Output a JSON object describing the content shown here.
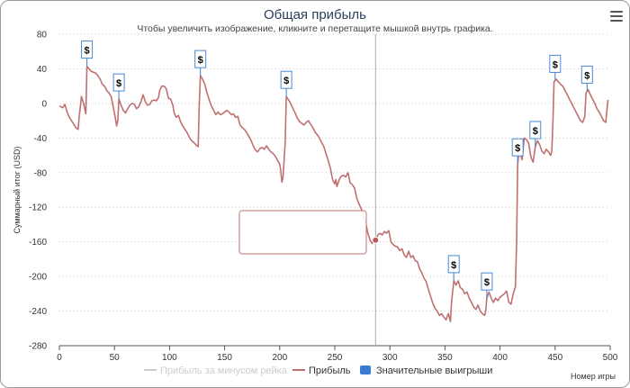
{
  "chart_data": {
    "type": "line",
    "title": "Общая прибыль",
    "subtitle": "Чтобы увеличить изображение, кликните и перетащите мышкой внутрь графика.",
    "ylabel": "Суммарный итог (USD)",
    "xlabel": "Номер игры",
    "xlim": [
      0,
      500
    ],
    "ylim": [
      -280,
      80
    ],
    "x_ticks": [
      0,
      50,
      100,
      150,
      200,
      250,
      300,
      350,
      400,
      450,
      500
    ],
    "y_ticks": [
      80,
      40,
      0,
      -40,
      -80,
      -120,
      -160,
      -200,
      -240,
      -280
    ],
    "series": [
      {
        "name": "Прибыль",
        "color": "#c07070",
        "points": [
          [
            0,
            -3
          ],
          [
            3,
            -5
          ],
          [
            5,
            -1
          ],
          [
            7,
            -10
          ],
          [
            9,
            -16
          ],
          [
            12,
            -22
          ],
          [
            15,
            -28
          ],
          [
            17,
            -30
          ],
          [
            18,
            -15
          ],
          [
            20,
            8
          ],
          [
            22,
            0
          ],
          [
            24,
            -12
          ],
          [
            25,
            43
          ],
          [
            27,
            40
          ],
          [
            29,
            37
          ],
          [
            31,
            36
          ],
          [
            33,
            35
          ],
          [
            35,
            32
          ],
          [
            37,
            28
          ],
          [
            39,
            22
          ],
          [
            41,
            20
          ],
          [
            43,
            15
          ],
          [
            45,
            12
          ],
          [
            47,
            8
          ],
          [
            49,
            -5
          ],
          [
            51,
            -18
          ],
          [
            52,
            -26
          ],
          [
            53,
            -20
          ],
          [
            54,
            5
          ],
          [
            56,
            -2
          ],
          [
            58,
            -8
          ],
          [
            60,
            -11
          ],
          [
            62,
            -6
          ],
          [
            64,
            -2
          ],
          [
            66,
            0
          ],
          [
            68,
            -1
          ],
          [
            70,
            -6
          ],
          [
            72,
            -4
          ],
          [
            74,
            2
          ],
          [
            76,
            10
          ],
          [
            78,
            2
          ],
          [
            80,
            -2
          ],
          [
            82,
            -1
          ],
          [
            84,
            3
          ],
          [
            86,
            4
          ],
          [
            88,
            3
          ],
          [
            90,
            7
          ],
          [
            91,
            15
          ],
          [
            93,
            20
          ],
          [
            95,
            20
          ],
          [
            97,
            17
          ],
          [
            99,
            6
          ],
          [
            101,
            5
          ],
          [
            103,
            -2
          ],
          [
            104,
            -10
          ],
          [
            106,
            -16
          ],
          [
            108,
            -14
          ],
          [
            110,
            -21
          ],
          [
            112,
            -26
          ],
          [
            114,
            -30
          ],
          [
            116,
            -34
          ],
          [
            118,
            -39
          ],
          [
            120,
            -43
          ],
          [
            122,
            -45
          ],
          [
            124,
            -48
          ],
          [
            126,
            -50
          ],
          [
            127,
            0
          ],
          [
            128,
            32
          ],
          [
            130,
            28
          ],
          [
            132,
            22
          ],
          [
            134,
            12
          ],
          [
            136,
            4
          ],
          [
            138,
            -3
          ],
          [
            140,
            -8
          ],
          [
            142,
            -13
          ],
          [
            144,
            -10
          ],
          [
            146,
            -13
          ],
          [
            148,
            -12
          ],
          [
            150,
            -10
          ],
          [
            152,
            -8
          ],
          [
            154,
            -10
          ],
          [
            156,
            -13
          ],
          [
            158,
            -12
          ],
          [
            160,
            -16
          ],
          [
            162,
            -15
          ],
          [
            164,
            -25
          ],
          [
            166,
            -28
          ],
          [
            168,
            -30
          ],
          [
            170,
            -34
          ],
          [
            172,
            -38
          ],
          [
            174,
            -43
          ],
          [
            176,
            -49
          ],
          [
            178,
            -54
          ],
          [
            180,
            -56
          ],
          [
            182,
            -52
          ],
          [
            184,
            -51
          ],
          [
            186,
            -53
          ],
          [
            188,
            -49
          ],
          [
            190,
            -53
          ],
          [
            192,
            -56
          ],
          [
            194,
            -58
          ],
          [
            196,
            -61
          ],
          [
            198,
            -66
          ],
          [
            200,
            -70
          ],
          [
            201,
            -78
          ],
          [
            202,
            -91
          ],
          [
            203,
            -85
          ],
          [
            204,
            -65
          ],
          [
            205,
            -45
          ],
          [
            206,
            8
          ],
          [
            208,
            4
          ],
          [
            210,
            0
          ],
          [
            212,
            -6
          ],
          [
            214,
            -11
          ],
          [
            216,
            -17
          ],
          [
            218,
            -21
          ],
          [
            220,
            -23
          ],
          [
            222,
            -25
          ],
          [
            224,
            -22
          ],
          [
            226,
            -20
          ],
          [
            228,
            -24
          ],
          [
            230,
            -28
          ],
          [
            232,
            -33
          ],
          [
            234,
            -36
          ],
          [
            236,
            -40
          ],
          [
            238,
            -45
          ],
          [
            240,
            -50
          ],
          [
            242,
            -58
          ],
          [
            244,
            -66
          ],
          [
            246,
            -75
          ],
          [
            248,
            -88
          ],
          [
            250,
            -93
          ],
          [
            251,
            -88
          ],
          [
            252,
            -96
          ],
          [
            254,
            -88
          ],
          [
            256,
            -84
          ],
          [
            258,
            -83
          ],
          [
            260,
            -85
          ],
          [
            262,
            -80
          ],
          [
            264,
            -92
          ],
          [
            266,
            -94
          ],
          [
            268,
            -98
          ],
          [
            270,
            -110
          ],
          [
            272,
            -116
          ],
          [
            274,
            -122
          ],
          [
            276,
            -131
          ],
          [
            278,
            -138
          ],
          [
            280,
            -150
          ],
          [
            282,
            -158
          ],
          [
            284,
            -162
          ],
          [
            286,
            -156
          ],
          [
            288,
            -158
          ],
          [
            289,
            -152
          ],
          [
            291,
            -150
          ],
          [
            293,
            -152
          ],
          [
            295,
            -148
          ],
          [
            297,
            -150
          ],
          [
            299,
            -147
          ],
          [
            301,
            -160
          ],
          [
            303,
            -163
          ],
          [
            305,
            -165
          ],
          [
            307,
            -166
          ],
          [
            309,
            -170
          ],
          [
            311,
            -168
          ],
          [
            313,
            -175
          ],
          [
            315,
            -178
          ],
          [
            317,
            -171
          ],
          [
            319,
            -178
          ],
          [
            321,
            -176
          ],
          [
            323,
            -182
          ],
          [
            325,
            -183
          ],
          [
            327,
            -191
          ],
          [
            329,
            -196
          ],
          [
            331,
            -202
          ],
          [
            333,
            -206
          ],
          [
            335,
            -215
          ],
          [
            337,
            -223
          ],
          [
            339,
            -231
          ],
          [
            341,
            -237
          ],
          [
            343,
            -240
          ],
          [
            345,
            -245
          ],
          [
            347,
            -243
          ],
          [
            349,
            -247
          ],
          [
            351,
            -250
          ],
          [
            353,
            -243
          ],
          [
            355,
            -252
          ],
          [
            356,
            -230
          ],
          [
            358,
            -205
          ],
          [
            360,
            -210
          ],
          [
            362,
            -205
          ],
          [
            364,
            -213
          ],
          [
            366,
            -215
          ],
          [
            368,
            -220
          ],
          [
            370,
            -218
          ],
          [
            372,
            -225
          ],
          [
            374,
            -230
          ],
          [
            376,
            -235
          ],
          [
            378,
            -238
          ],
          [
            380,
            -233
          ],
          [
            382,
            -240
          ],
          [
            384,
            -243
          ],
          [
            386,
            -245
          ],
          [
            387,
            -240
          ],
          [
            388,
            -225
          ],
          [
            390,
            -218
          ],
          [
            392,
            -225
          ],
          [
            394,
            -230
          ],
          [
            396,
            -225
          ],
          [
            398,
            -228
          ],
          [
            400,
            -224
          ],
          [
            402,
            -222
          ],
          [
            404,
            -220
          ],
          [
            406,
            -217
          ],
          [
            408,
            -230
          ],
          [
            410,
            -232
          ],
          [
            412,
            -220
          ],
          [
            414,
            -212
          ],
          [
            415,
            -160
          ],
          [
            416,
            -70
          ],
          [
            417,
            -58
          ],
          [
            419,
            -61
          ],
          [
            420,
            -65
          ],
          [
            422,
            -40
          ],
          [
            424,
            -42
          ],
          [
            426,
            -46
          ],
          [
            428,
            -62
          ],
          [
            430,
            -68
          ],
          [
            432,
            -50
          ],
          [
            434,
            -43
          ],
          [
            436,
            -48
          ],
          [
            438,
            -55
          ],
          [
            440,
            -58
          ],
          [
            442,
            -53
          ],
          [
            444,
            -56
          ],
          [
            446,
            -60
          ],
          [
            447,
            -55
          ],
          [
            448,
            -20
          ],
          [
            449,
            25
          ],
          [
            451,
            28
          ],
          [
            453,
            25
          ],
          [
            455,
            22
          ],
          [
            457,
            20
          ],
          [
            459,
            15
          ],
          [
            461,
            10
          ],
          [
            463,
            5
          ],
          [
            465,
            0
          ],
          [
            467,
            -5
          ],
          [
            469,
            -10
          ],
          [
            471,
            -15
          ],
          [
            473,
            -20
          ],
          [
            475,
            -22
          ],
          [
            477,
            -15
          ],
          [
            478,
            12
          ],
          [
            480,
            16
          ],
          [
            482,
            10
          ],
          [
            484,
            5
          ],
          [
            486,
            0
          ],
          [
            488,
            -6
          ],
          [
            490,
            -10
          ],
          [
            492,
            -15
          ],
          [
            494,
            -20
          ],
          [
            496,
            -22
          ],
          [
            497,
            -8
          ],
          [
            498,
            4
          ]
        ]
      },
      {
        "name": "Прибыль за минусом рейка",
        "color": "#cccccc",
        "points": []
      }
    ],
    "markers": {
      "name": "Значительные выигрыши",
      "color": "#3a7cd5",
      "label": "$",
      "games": [
        25,
        54,
        128,
        206,
        358,
        388,
        416,
        432,
        450,
        479
      ]
    },
    "crosshair_x": 287,
    "highlight_point": [
      287,
      -158
    ],
    "legend": {
      "position": "bottom",
      "items": [
        {
          "label": "Прибыль за минусом рейка",
          "color": "#cccccc",
          "active": false
        },
        {
          "label": "Прибыль",
          "color": "#c07070",
          "active": true
        },
        {
          "label": "Значительные выигрыши",
          "color": "#3a7cd5",
          "active": true
        }
      ]
    }
  }
}
